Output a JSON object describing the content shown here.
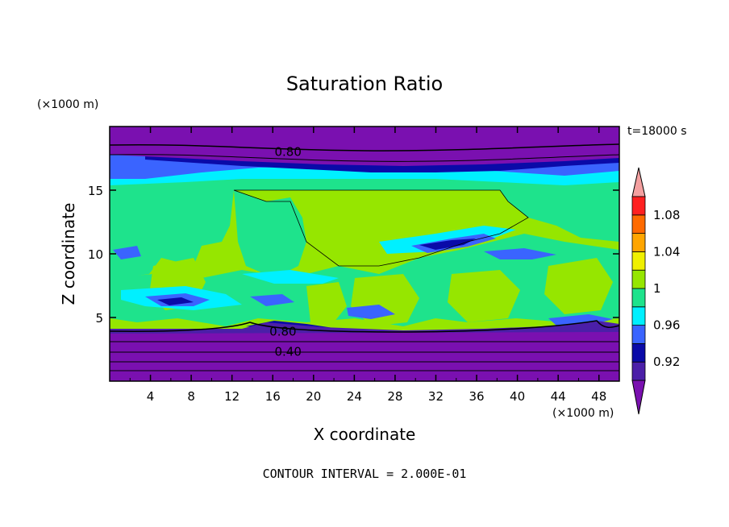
{
  "chart_data": {
    "type": "heatmap",
    "title": "Saturation Ratio",
    "xlabel": "X coordinate",
    "ylabel": "Z coordinate",
    "x_unit": "(×1000 m)",
    "y_unit": "(×1000 m)",
    "time_label": "t=18000 s",
    "footer": "CONTOUR INTERVAL = 2.000E-01",
    "xlim": [
      0,
      50
    ],
    "ylim": [
      0,
      20
    ],
    "x_ticks": [
      4,
      8,
      12,
      16,
      20,
      24,
      28,
      32,
      36,
      40,
      44,
      48
    ],
    "y_ticks": [
      5,
      10,
      15
    ],
    "contour_labels": [
      {
        "text": "0.80",
        "x": 17.5,
        "y": 18.0
      },
      {
        "text": "0.80",
        "x": 17.0,
        "y": 3.9
      },
      {
        "text": "0.40",
        "x": 17.5,
        "y": 2.3
      }
    ],
    "colorbar": {
      "tick_labels": [
        "1.08",
        "1.04",
        "1",
        "0.96",
        "0.92"
      ],
      "tick_values": [
        1.08,
        1.04,
        1.0,
        0.96,
        0.92
      ],
      "levels": [
        0.9,
        0.92,
        0.94,
        0.96,
        0.98,
        1.0,
        1.02,
        1.04,
        1.06,
        1.08,
        1.1
      ],
      "colors": [
        "#4b1fa8",
        "#0a0aa8",
        "#3a64ff",
        "#00f0ff",
        "#1ee38c",
        "#96e600",
        "#f0f000",
        "#ffa500",
        "#ff6a00",
        "#ff2020"
      ],
      "under_color": "#7a10b0",
      "over_color": "#f4a0a0"
    },
    "regions": {
      "top_band": {
        "z_range": [
          17.5,
          20
        ],
        "value": "below 0.90"
      },
      "upper_moist_layer": {
        "z_range": [
          15,
          17.5
        ],
        "value": "0.92-0.98"
      },
      "cloud_layer": {
        "z_range": [
          4,
          15
        ],
        "value": "0.98-1.02"
      },
      "bottom_band": {
        "z_range": [
          0,
          4
        ],
        "value": "below 0.90"
      }
    }
  }
}
